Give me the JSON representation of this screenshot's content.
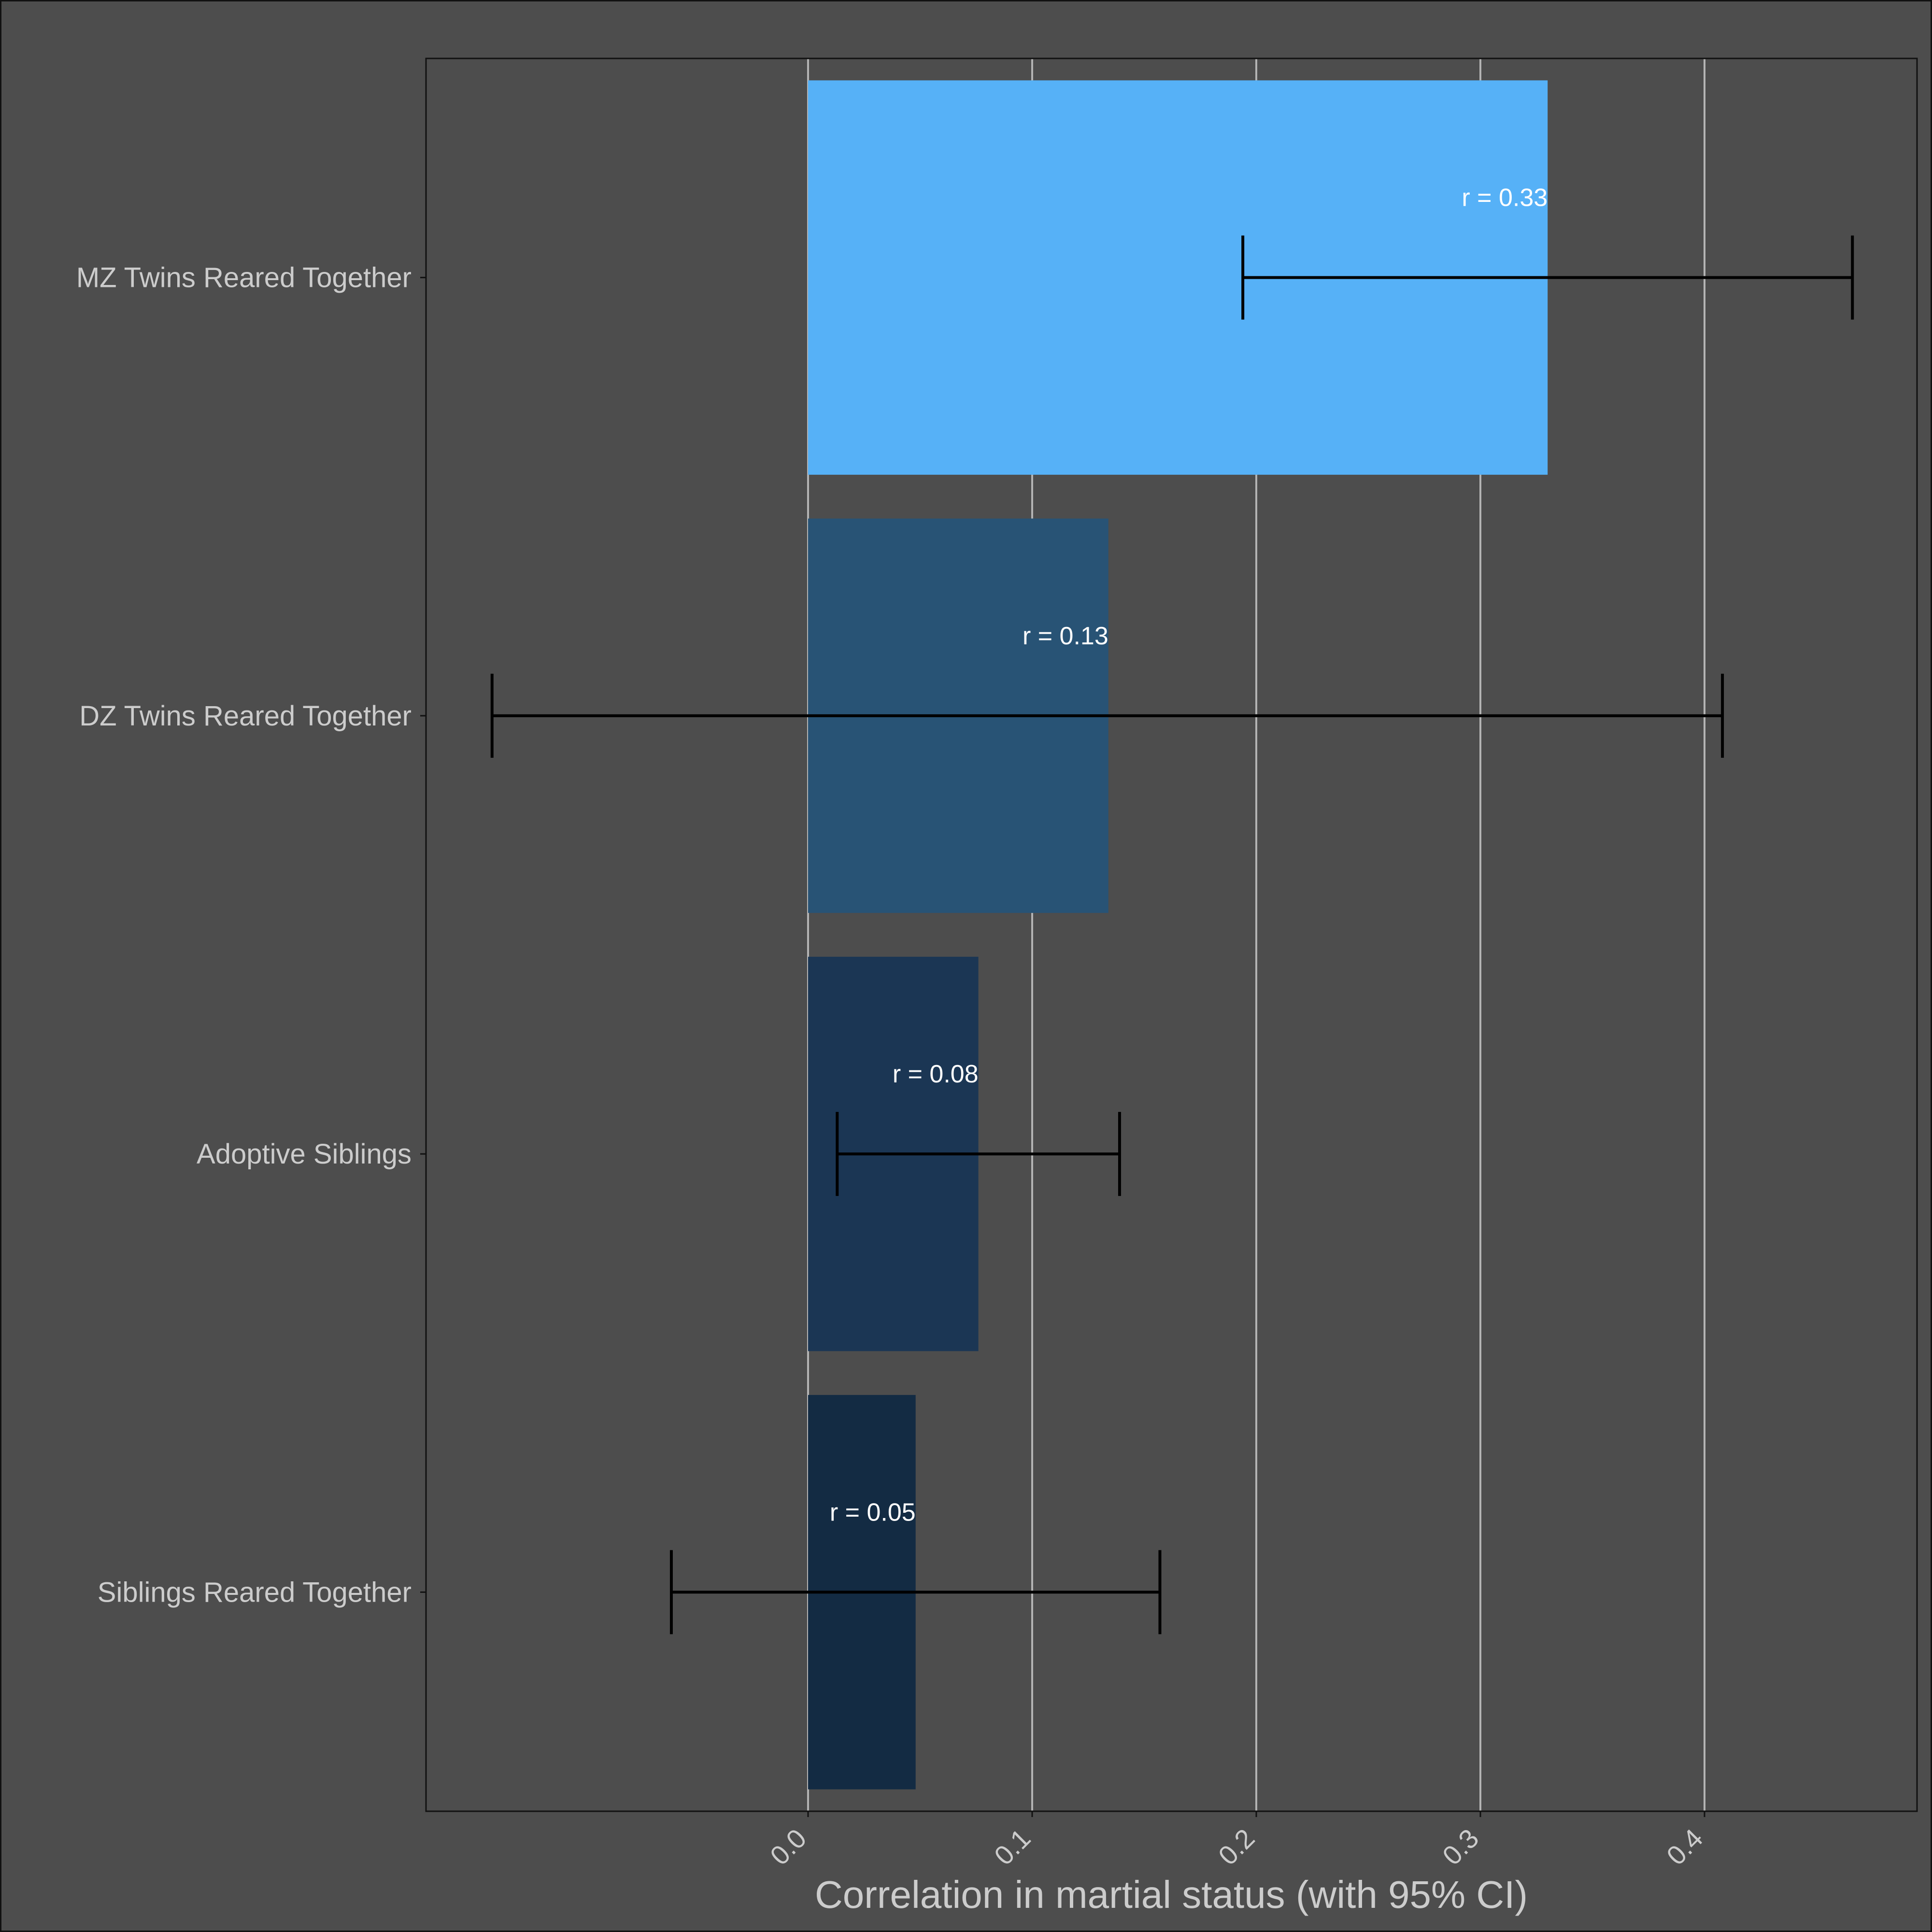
{
  "chart_data": {
    "type": "bar",
    "orientation": "horizontal",
    "title": "",
    "xlabel": "Correlation in martial status (with 95% CI)",
    "ylabel": "",
    "xlim": [
      -0.17,
      0.495
    ],
    "x_ticks": [
      "0.0",
      "0.1",
      "0.2",
      "0.3",
      "0.4"
    ],
    "x_tick_values": [
      0.0,
      0.1,
      0.2,
      0.3,
      0.4
    ],
    "grid": "vertical major gridlines",
    "legend": "none",
    "colors": {
      "background": "#4d4d4d",
      "panel": "#4d4d4d",
      "gridline": "#b3b3b3",
      "errorbar": "#000000",
      "axis_text": "#cccccc",
      "bar_label_text": "#ffffff"
    },
    "categories": [
      "MZ Twins Reared Together",
      "DZ Twins Reared Together",
      "Adoptive Siblings",
      "Siblings Reared Together"
    ],
    "values": [
      0.33,
      0.134,
      0.076,
      0.048
    ],
    "ci_lower": [
      0.194,
      -0.141,
      0.013,
      -0.061
    ],
    "ci_upper": [
      0.466,
      0.408,
      0.139,
      0.157
    ],
    "bar_labels": [
      "r = 0.33",
      "r = 0.13",
      "r = 0.08",
      "r = 0.05"
    ],
    "bar_colors": [
      "#56b1f7",
      "#285375",
      "#1b3654",
      "#132b43"
    ]
  }
}
